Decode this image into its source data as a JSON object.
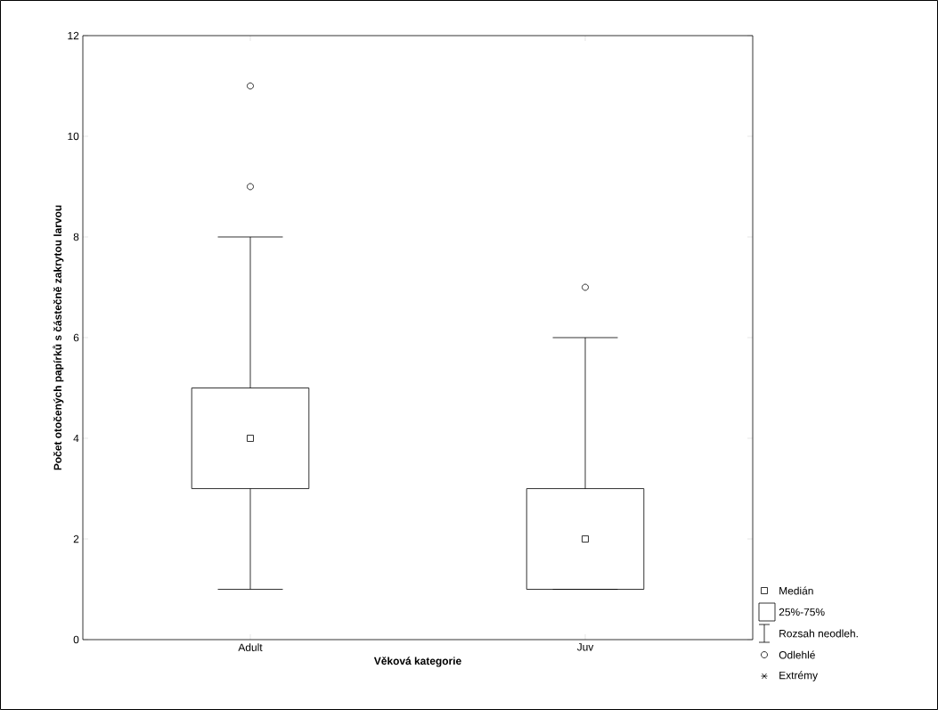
{
  "chart_data": {
    "type": "box",
    "xlabel": "Věková kategorie",
    "ylabel": "Počet otočených papírků s částečně zakrytou larvou",
    "categories": [
      "Adult",
      "Juv"
    ],
    "boxes": [
      {
        "low": 1,
        "q1": 3,
        "median": 4,
        "q3": 5,
        "high": 8,
        "outliers": [
          9,
          11
        ]
      },
      {
        "low": 1,
        "q1": 1,
        "median": 2,
        "q3": 3,
        "high": 6,
        "outliers": [
          7
        ]
      }
    ],
    "ylim": [
      0,
      12
    ],
    "yticks": [
      0,
      2,
      4,
      6,
      8,
      10,
      12
    ],
    "annotations": [
      "Medián",
      "25%-75%",
      "Rozsah neodleh.",
      "Odlehlé",
      "Extrémy"
    ]
  }
}
